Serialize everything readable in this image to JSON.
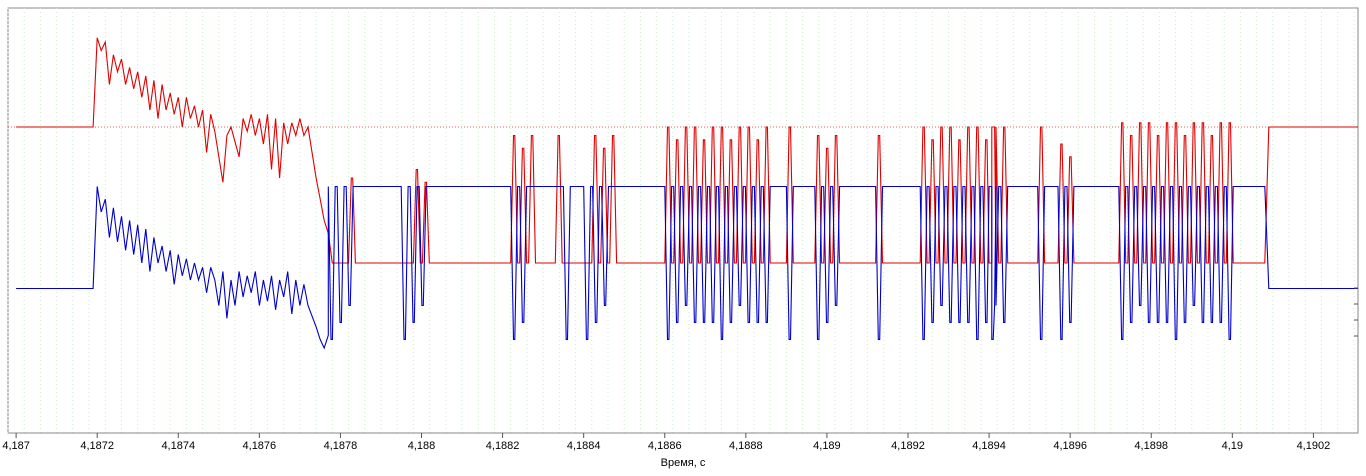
{
  "chart_data": {
    "type": "line",
    "xlabel": "Время, с",
    "xlim": [
      4.18698,
      4.19031
    ],
    "x_ticks": [
      "4,187",
      "4,1872",
      "4,1874",
      "4,1876",
      "4,1878",
      "4,188",
      "4,1882",
      "4,1884",
      "4,1886",
      "4,1888",
      "4,189",
      "4,1892",
      "4,1894",
      "4,1896",
      "4,1898",
      "4,19",
      "4,1902"
    ],
    "x_tick_values": [
      4.187,
      4.1872,
      4.1874,
      4.1876,
      4.1878,
      4.188,
      4.1882,
      4.1884,
      4.1886,
      4.1888,
      4.189,
      4.1892,
      4.1894,
      4.1896,
      4.1898,
      4.19,
      4.1902
    ],
    "grid": "vertical dotted, green",
    "ylim": [
      0,
      1
    ],
    "series": [
      {
        "color": "#e00000",
        "baseline": 0.72,
        "points": [
          [
            4.187,
            0.72
          ],
          [
            4.18719,
            0.72
          ],
          [
            4.1872,
            0.93
          ],
          [
            4.18721,
            0.9
          ],
          [
            4.18722,
            0.92
          ],
          [
            4.18723,
            0.82
          ],
          [
            4.18724,
            0.89
          ],
          [
            4.18725,
            0.85
          ],
          [
            4.18726,
            0.88
          ],
          [
            4.18727,
            0.82
          ],
          [
            4.18728,
            0.86
          ],
          [
            4.18729,
            0.81
          ],
          [
            4.1873,
            0.85
          ],
          [
            4.18731,
            0.79
          ],
          [
            4.18732,
            0.84
          ],
          [
            4.18733,
            0.76
          ],
          [
            4.18734,
            0.83
          ],
          [
            4.18735,
            0.74
          ],
          [
            4.18736,
            0.82
          ],
          [
            4.18737,
            0.76
          ],
          [
            4.18738,
            0.8
          ],
          [
            4.18739,
            0.75
          ],
          [
            4.1874,
            0.79
          ],
          [
            4.18741,
            0.72
          ],
          [
            4.18742,
            0.79
          ],
          [
            4.18743,
            0.74
          ],
          [
            4.18744,
            0.77
          ],
          [
            4.18745,
            0.72
          ],
          [
            4.18746,
            0.76
          ],
          [
            4.18747,
            0.66
          ],
          [
            4.18748,
            0.75
          ],
          [
            4.18749,
            0.71
          ],
          [
            4.18751,
            0.59
          ],
          [
            4.18752,
            0.7
          ],
          [
            4.18753,
            0.72
          ],
          [
            4.18755,
            0.65
          ],
          [
            4.18756,
            0.74
          ],
          [
            4.18757,
            0.71
          ],
          [
            4.18758,
            0.75
          ],
          [
            4.18759,
            0.7
          ],
          [
            4.1876,
            0.74
          ],
          [
            4.18761,
            0.68
          ],
          [
            4.18762,
            0.75
          ],
          [
            4.18763,
            0.62
          ],
          [
            4.18764,
            0.74
          ],
          [
            4.18765,
            0.6
          ],
          [
            4.18766,
            0.73
          ],
          [
            4.18767,
            0.68
          ],
          [
            4.18768,
            0.73
          ],
          [
            4.18769,
            0.7
          ],
          [
            4.1877,
            0.74
          ],
          [
            4.18771,
            0.7
          ],
          [
            4.18772,
            0.72
          ],
          [
            4.18774,
            0.6
          ],
          [
            4.18775,
            0.55
          ],
          [
            4.18776,
            0.5
          ],
          [
            4.18777,
            0.47
          ],
          [
            4.18778,
            0.4
          ],
          [
            4.18779,
            0.4
          ],
          [
            4.1878,
            0.4
          ]
        ],
        "square": {
          "low": 0.4,
          "high": 0.72,
          "bursts": [
            [
              4.18782,
              1,
              0.6
            ],
            [
              4.18798,
              2,
              0.62
            ],
            [
              4.18822,
              3,
              0.7
            ],
            [
              4.18833,
              1,
              0.7
            ],
            [
              4.18842,
              3,
              0.7
            ],
            [
              4.1886,
              12,
              0.72
            ],
            [
              4.1889,
              1,
              0.72
            ],
            [
              4.18897,
              3,
              0.7
            ],
            [
              4.18912,
              1,
              0.7
            ],
            [
              4.18923,
              10,
              0.72
            ],
            [
              4.1894,
              1,
              0.72
            ],
            [
              4.18952,
              1,
              0.72
            ],
            [
              4.18957,
              2,
              0.68
            ],
            [
              4.18972,
              13,
              0.73
            ]
          ],
          "end_rise": 4.19008,
          "end_level": 0.72
        }
      },
      {
        "color": "#0000c8",
        "baseline": 0.34,
        "points": [
          [
            4.187,
            0.34
          ],
          [
            4.18719,
            0.34
          ],
          [
            4.1872,
            0.58
          ],
          [
            4.18721,
            0.52
          ],
          [
            4.18722,
            0.55
          ],
          [
            4.18723,
            0.46
          ],
          [
            4.18724,
            0.53
          ],
          [
            4.18725,
            0.45
          ],
          [
            4.18726,
            0.51
          ],
          [
            4.18727,
            0.43
          ],
          [
            4.18728,
            0.5
          ],
          [
            4.18729,
            0.42
          ],
          [
            4.1873,
            0.49
          ],
          [
            4.18731,
            0.4
          ],
          [
            4.18732,
            0.48
          ],
          [
            4.18733,
            0.38
          ],
          [
            4.18734,
            0.46
          ],
          [
            4.18735,
            0.4
          ],
          [
            4.18736,
            0.44
          ],
          [
            4.18737,
            0.38
          ],
          [
            4.18738,
            0.43
          ],
          [
            4.18739,
            0.35
          ],
          [
            4.1874,
            0.42
          ],
          [
            4.18741,
            0.37
          ],
          [
            4.18742,
            0.41
          ],
          [
            4.18743,
            0.36
          ],
          [
            4.18744,
            0.4
          ],
          [
            4.18745,
            0.36
          ],
          [
            4.18746,
            0.39
          ],
          [
            4.18747,
            0.33
          ],
          [
            4.18748,
            0.39
          ],
          [
            4.18749,
            0.36
          ],
          [
            4.1875,
            0.3
          ],
          [
            4.18751,
            0.38
          ],
          [
            4.18752,
            0.27
          ],
          [
            4.18753,
            0.36
          ],
          [
            4.18754,
            0.3
          ],
          [
            4.18755,
            0.38
          ],
          [
            4.18756,
            0.32
          ],
          [
            4.18757,
            0.37
          ],
          [
            4.18758,
            0.33
          ],
          [
            4.18759,
            0.38
          ],
          [
            4.1876,
            0.3
          ],
          [
            4.18761,
            0.36
          ],
          [
            4.18762,
            0.31
          ],
          [
            4.18763,
            0.37
          ],
          [
            4.18764,
            0.29
          ],
          [
            4.18765,
            0.36
          ],
          [
            4.18766,
            0.32
          ],
          [
            4.18767,
            0.38
          ],
          [
            4.18768,
            0.28
          ],
          [
            4.18769,
            0.36
          ],
          [
            4.1877,
            0.3
          ],
          [
            4.18771,
            0.35
          ],
          [
            4.18772,
            0.3
          ],
          [
            4.18774,
            0.25
          ],
          [
            4.18775,
            0.22
          ],
          [
            4.18776,
            0.2
          ],
          [
            4.18777,
            0.23
          ]
        ],
        "square": {
          "low": 0.32,
          "high": 0.58,
          "bursts": [
            [
              4.18777,
              3,
              0.58
            ],
            [
              4.18795,
              3,
              0.58
            ],
            [
              4.18822,
              2,
              0.58
            ],
            [
              4.18835,
              1,
              0.58
            ],
            [
              4.1884,
              3,
              0.58
            ],
            [
              4.1886,
              12,
              0.58
            ],
            [
              4.1889,
              1,
              0.58
            ],
            [
              4.18897,
              3,
              0.58
            ],
            [
              4.18912,
              1,
              0.58
            ],
            [
              4.18923,
              10,
              0.58
            ],
            [
              4.1894,
              1,
              0.58
            ],
            [
              4.18952,
              1,
              0.58
            ],
            [
              4.18957,
              2,
              0.58
            ],
            [
              4.18972,
              13,
              0.58
            ]
          ],
          "end_fall": 4.19008,
          "end_level": 0.34
        }
      }
    ],
    "right_axis_ticks": 4
  }
}
